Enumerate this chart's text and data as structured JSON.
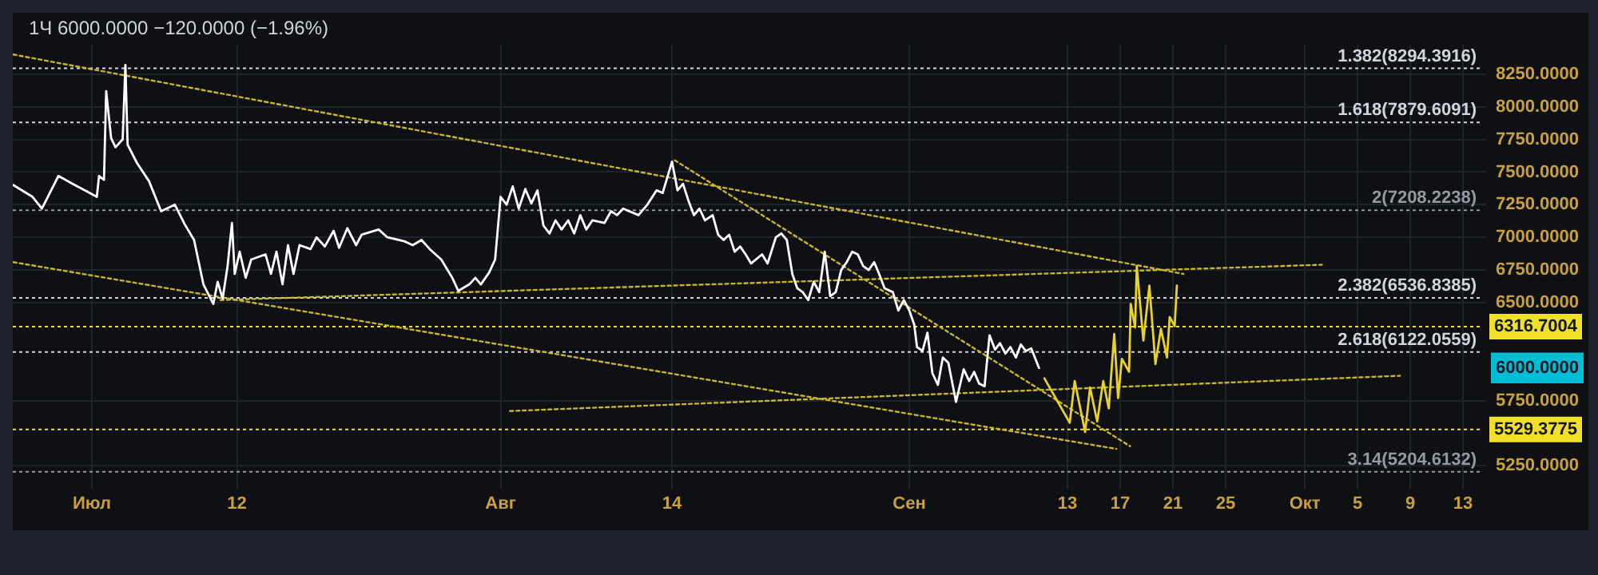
{
  "chart_data": {
    "type": "line",
    "title": "1Ч 6000.0000 −120.0000 (−1.96%)",
    "xlim": [
      "--06-25",
      "--10-14T18:00"
    ],
    "xticks": [
      {
        "value": "--07-01",
        "label": "Июл"
      },
      {
        "value": "--07-12",
        "label": "12"
      },
      {
        "value": "--08-01",
        "label": "Авг"
      },
      {
        "value": "--08-14",
        "label": "14"
      },
      {
        "value": "--09-01",
        "label": "Сен"
      },
      {
        "value": "--09-13",
        "label": "13"
      },
      {
        "value": "--09-17",
        "label": "17"
      },
      {
        "value": "--09-21",
        "label": "21"
      },
      {
        "value": "--09-25",
        "label": "25"
      },
      {
        "value": "--10-01",
        "label": "Окт"
      },
      {
        "value": "--10-05",
        "label": "5"
      },
      {
        "value": "--10-09",
        "label": "9"
      },
      {
        "value": "--10-13",
        "label": "13"
      }
    ],
    "ylim": [
      5075,
      8475
    ],
    "yticks": [
      {
        "value": 5250,
        "label": "5250.0000"
      },
      {
        "value": 5750,
        "label": "5750.0000"
      },
      {
        "value": 6500,
        "label": "6500.0000"
      },
      {
        "value": 6750,
        "label": "6750.0000"
      },
      {
        "value": 7000,
        "label": "7000.0000"
      },
      {
        "value": 7250,
        "label": "7250.0000"
      },
      {
        "value": 7500,
        "label": "7500.0000"
      },
      {
        "value": 7750,
        "label": "7750.0000"
      },
      {
        "value": 8000,
        "label": "8000.0000"
      },
      {
        "value": 8250,
        "label": "8250.0000"
      },
      {
        "value": 6000,
        "label": "6000.0000"
      }
    ],
    "grid": true,
    "legend": false,
    "marker": "none",
    "series": [
      {
        "color": "#ffffff",
        "line_style": "solid",
        "x": [
          "--06-25T01:00",
          "--06-26T12:00",
          "--06-27T05:00",
          "--06-28T11:00",
          "--06-29T13:00",
          "--06-30T11:00",
          "--07-01T09:00",
          "--07-01T13:00",
          "--07-01T22:00",
          "--07-02T02:00",
          "--07-02T11:00",
          "--07-02T19:00",
          "--07-03T08:00",
          "--07-03T13:00",
          "--07-03T17:00",
          "--07-04T10:00",
          "--07-05T08:00",
          "--07-06T06:00",
          "--07-07T07:00",
          "--07-08T01:00",
          "--07-08T18:00",
          "--07-09T11:00",
          "--07-10T05:00",
          "--07-10T13:00",
          "--07-10T22:00",
          "--07-11T07:00",
          "--07-11T15:00",
          "--07-11T20:00",
          "--07-12T05:00",
          "--07-12T16:00",
          "--07-13T02:00",
          "--07-14T04:00",
          "--07-14T14:00",
          "--07-15T00:00",
          "--07-15T11:00",
          "--07-15T21:00",
          "--07-16T07:00",
          "--07-16T18:00",
          "--07-17T14:00",
          "--07-18T01:00",
          "--07-18T16:00",
          "--07-19T08:00",
          "--07-19T18:00",
          "--07-20T09:00",
          "--07-21T01:00",
          "--07-21T11:00",
          "--07-22T18:00",
          "--07-23T10:00",
          "--07-24T17:00",
          "--07-25T08:00",
          "--07-26T00:00",
          "--07-26T15:00",
          "--07-27T12:00",
          "--07-28T08:00",
          "--07-28T19:00",
          "--07-29T15:00",
          "--07-30T02:00",
          "--07-30T12:00",
          "--07-31T03:00",
          "--07-31T14:00",
          "--08-01T00:00",
          "--08-01T11:00",
          "--08-01T22:00",
          "--08-02T09:00",
          "--08-02T21:00",
          "--08-03T08:00",
          "--08-03T19:00",
          "--08-04T06:00",
          "--08-04T17:00",
          "--08-05T04:00",
          "--08-05T15:00",
          "--08-06T03:00",
          "--08-06T14:00",
          "--08-07T01:00",
          "--08-07T12:00",
          "--08-07T23:00",
          "--08-08T21:00",
          "--08-09T09:00",
          "--08-09T20:00",
          "--08-10T07:00",
          "--08-11T11:00",
          "--08-12T03:00",
          "--08-12T20:00",
          "--08-13T07:00",
          "--08-14T00:00",
          "--08-14T10:00",
          "--08-14T20:00",
          "--08-15T06:00",
          "--08-15T16:00",
          "--08-16T02:00",
          "--08-16T12:00",
          "--08-17T02:00",
          "--08-17T12:00",
          "--08-17T22:00",
          "--08-18T08:00",
          "--08-18T18:00",
          "--08-19T04:00",
          "--08-19T14:00",
          "--08-20T00:00",
          "--08-20T20:00",
          "--08-21T06:00",
          "--08-21T21:00",
          "--08-22T07:00",
          "--08-22T17:00",
          "--08-23T03:00",
          "--08-23T12:00",
          "--08-23T22:00",
          "--08-24T08:00",
          "--08-24T18:00",
          "--08-25T04:00",
          "--08-25T14:00",
          "--08-26T00:00",
          "--08-26T10:00",
          "--08-26T20:00",
          "--08-27T06:00",
          "--08-27T16:00",
          "--08-28T02:00",
          "--08-28T12:00",
          "--08-28T22:00",
          "--08-29T08:00",
          "--08-29T17:00",
          "--08-30T03:00",
          "--08-30T18:00",
          "--08-31T04:00",
          "--08-31T14:00",
          "--09-01T00:00",
          "--09-01T09:00",
          "--09-01T14:00",
          "--09-02T00:00",
          "--09-02T09:00",
          "--09-02T18:00",
          "--09-03T04:00",
          "--09-03T13:00",
          "--09-03T23:00",
          "--09-04T13:00",
          "--09-05T03:00",
          "--09-05T13:00",
          "--09-05T22:00",
          "--09-06T07:00",
          "--09-06T17:00",
          "--09-07T02:00",
          "--09-07T12:00",
          "--09-07T21:00",
          "--09-08T07:00",
          "--09-08T16:00",
          "--09-09T02:00",
          "--09-09T11:00",
          "--09-09T20:00",
          "--09-10T06:00",
          "--09-10T20:00"
        ],
        "values": [
          7400,
          7310,
          7220,
          7470,
          7410,
          7360,
          7310,
          7470,
          7440,
          8120,
          7760,
          7690,
          7750,
          8320,
          7710,
          7570,
          7430,
          7200,
          7250,
          7100,
          6980,
          6640,
          6490,
          6660,
          6530,
          6780,
          7110,
          6720,
          6890,
          6690,
          6830,
          6870,
          6720,
          6890,
          6640,
          6940,
          6720,
          6940,
          6910,
          7000,
          6930,
          7050,
          6920,
          7070,
          6940,
          7020,
          7060,
          7000,
          6970,
          6940,
          6980,
          6910,
          6830,
          6690,
          6590,
          6640,
          6690,
          6640,
          6730,
          6830,
          7310,
          7250,
          7390,
          7220,
          7370,
          7260,
          7360,
          7090,
          7030,
          7130,
          7060,
          7130,
          7030,
          7170,
          7060,
          7130,
          7110,
          7200,
          7170,
          7220,
          7170,
          7250,
          7360,
          7340,
          7580,
          7360,
          7410,
          7280,
          7170,
          7220,
          7130,
          7170,
          7020,
          6980,
          7020,
          6890,
          6930,
          6870,
          6800,
          6870,
          6800,
          7000,
          7030,
          6980,
          6720,
          6610,
          6580,
          6520,
          6660,
          6580,
          6890,
          6550,
          6580,
          6750,
          6810,
          6890,
          6870,
          6780,
          6750,
          6810,
          6720,
          6610,
          6580,
          6440,
          6520,
          6440,
          6330,
          6160,
          6130,
          6270,
          5960,
          5870,
          6080,
          6040,
          5740,
          5990,
          5900,
          5970,
          5880,
          5860,
          6250,
          6140,
          6190,
          6110,
          6160,
          6080,
          6180,
          6130,
          6150,
          6000
        ]
      },
      {
        "color": "#e8d12a",
        "line_style": "solid",
        "x": [
          "--09-11T06:00",
          "--09-13T04:00",
          "--09-13T13:00",
          "--09-14T08:00",
          "--09-14T17:00",
          "--09-15T06:00",
          "--09-15T17:00",
          "--09-16T03:00",
          "--09-16T13:00",
          "--09-16T20:00",
          "--09-17T03:00",
          "--09-17T16:00",
          "--09-17T19:00",
          "--09-18T03:00",
          "--09-18T06:00",
          "--09-18T18:00",
          "--09-19T05:00",
          "--09-19T16:00",
          "--09-20T02:00",
          "--09-20T13:00",
          "--09-20T18:00",
          "--09-21T03:00",
          "--09-21T07:00"
        ],
        "values": [
          5920,
          5580,
          5900,
          5510,
          5850,
          5590,
          5900,
          5690,
          6260,
          5770,
          6070,
          5970,
          6490,
          6310,
          6780,
          6210,
          6630,
          6030,
          6300,
          6080,
          6390,
          6320,
          6630
        ]
      },
      {
        "color": "#c8b62a",
        "line_style": "dotted",
        "x": [
          "--06-25T01:00",
          "--09-21T19:00"
        ],
        "values": [
          8400,
          6720
        ]
      },
      {
        "color": "#c8b62a",
        "line_style": "dotted",
        "x": [
          "--07-10T18:00",
          "--10-02T07:00"
        ],
        "values": [
          6520,
          6790
        ]
      },
      {
        "color": "#c8b62a",
        "line_style": "dotted",
        "x": [
          "--08-14T05:00",
          "--09-17T18:00"
        ],
        "values": [
          7590,
          5400
        ]
      },
      {
        "color": "#c8b62a",
        "line_style": "dotted",
        "x": [
          "--06-25T01:00",
          "--09-16T17:00"
        ],
        "values": [
          6810,
          5380
        ]
      },
      {
        "color": "#c8b62a",
        "line_style": "dotted",
        "x": [
          "--08-01T17:00",
          "--10-08T05:00"
        ],
        "values": [
          5670,
          5940
        ]
      }
    ],
    "ref_lines": [
      {
        "axis": "y",
        "value": 8294.3916,
        "label": "1.382(8294.3916)",
        "color": "#d1d4dc",
        "line_style": "dotted"
      },
      {
        "axis": "y",
        "value": 7879.6091,
        "label": "1.618(7879.6091)",
        "color": "#d1d4dc",
        "line_style": "dotted"
      },
      {
        "axis": "y",
        "value": 7208.2238,
        "label": "2(7208.2238)",
        "color": "#9598a1",
        "line_style": "dotted"
      },
      {
        "axis": "y",
        "value": 6536.8385,
        "label": "2.382(6536.8385)",
        "color": "#d1d4dc",
        "line_style": "dotted"
      },
      {
        "axis": "y",
        "value": 6122.0559,
        "label": "2.618(6122.0559)",
        "color": "#d1d4dc",
        "line_style": "dotted"
      },
      {
        "axis": "y",
        "value": 5204.6132,
        "label": "3.14(5204.6132)",
        "color": "#9598a1",
        "line_style": "dotted"
      },
      {
        "axis": "y",
        "value": 6316.7004,
        "label": "6316.7004",
        "color": "#f0e02a",
        "line_style": "dotted"
      },
      {
        "axis": "y",
        "value": 5529.3775,
        "label": "5529.3775",
        "color": "#f0e02a",
        "line_style": "dotted"
      }
    ]
  }
}
